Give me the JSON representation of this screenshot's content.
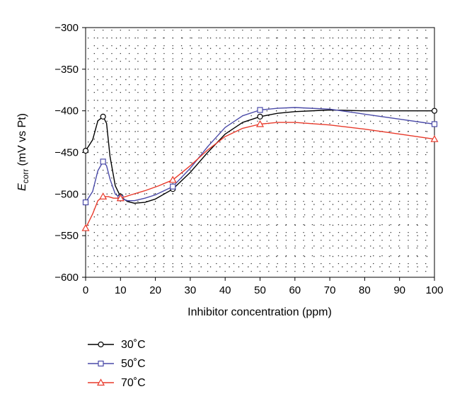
{
  "chart_data": {
    "type": "line",
    "xlabel": "Inhibitor concentration (ppm)",
    "ylabel": {
      "symbol": "E",
      "subscript": "corr",
      "units": "(mV vs Pt)"
    },
    "xlim": [
      0,
      100
    ],
    "ylim": [
      -600,
      -300
    ],
    "xticks": [
      0,
      10,
      20,
      30,
      40,
      50,
      60,
      70,
      80,
      90,
      100
    ],
    "yticks": [
      -300,
      -350,
      -400,
      -450,
      -500,
      -550,
      -600
    ],
    "grid": "dotted",
    "legend_position": "bottom-left",
    "series": [
      {
        "name": "30˚C",
        "color": "#000000",
        "marker": "circle",
        "x": [
          0,
          5,
          10,
          25,
          50,
          100
        ],
        "y": [
          -448,
          -407,
          -503,
          -494,
          -407,
          -400
        ],
        "curve": [
          [
            0,
            -448
          ],
          [
            2,
            -435
          ],
          [
            3.5,
            -412
          ],
          [
            5,
            -407
          ],
          [
            6,
            -415
          ],
          [
            7,
            -455
          ],
          [
            8.5,
            -490
          ],
          [
            10,
            -503
          ],
          [
            12,
            -509
          ],
          [
            14,
            -511
          ],
          [
            17,
            -510
          ],
          [
            20,
            -506
          ],
          [
            25,
            -494
          ],
          [
            30,
            -474
          ],
          [
            35,
            -450
          ],
          [
            40,
            -428
          ],
          [
            45,
            -414
          ],
          [
            50,
            -407
          ],
          [
            55,
            -403
          ],
          [
            60,
            -401
          ],
          [
            70,
            -399
          ],
          [
            80,
            -400
          ],
          [
            90,
            -400
          ],
          [
            100,
            -400
          ]
        ]
      },
      {
        "name": "50˚C",
        "color": "#4a4aa8",
        "marker": "square",
        "x": [
          0,
          5,
          10,
          25,
          50,
          100
        ],
        "y": [
          -510,
          -461,
          -505,
          -491,
          -399,
          -416
        ],
        "curve": [
          [
            0,
            -510
          ],
          [
            2,
            -497
          ],
          [
            3.5,
            -472
          ],
          [
            5,
            -461
          ],
          [
            6,
            -466
          ],
          [
            7,
            -482
          ],
          [
            8.5,
            -500
          ],
          [
            10,
            -505
          ],
          [
            12,
            -508
          ],
          [
            14,
            -508
          ],
          [
            17,
            -505
          ],
          [
            20,
            -501
          ],
          [
            25,
            -491
          ],
          [
            30,
            -469
          ],
          [
            35,
            -443
          ],
          [
            40,
            -420
          ],
          [
            45,
            -406
          ],
          [
            50,
            -399
          ],
          [
            55,
            -397
          ],
          [
            60,
            -396
          ],
          [
            70,
            -398
          ],
          [
            80,
            -404
          ],
          [
            90,
            -410
          ],
          [
            100,
            -416
          ]
        ]
      },
      {
        "name": "70˚C",
        "color": "#e8392a",
        "marker": "triangle",
        "x": [
          0,
          5,
          10,
          25,
          50,
          100
        ],
        "y": [
          -541,
          -503,
          -505,
          -483,
          -416,
          -434
        ],
        "curve": [
          [
            0,
            -541
          ],
          [
            2,
            -524
          ],
          [
            3.5,
            -508
          ],
          [
            5,
            -503
          ],
          [
            6.5,
            -503
          ],
          [
            8,
            -505
          ],
          [
            10,
            -505
          ],
          [
            13,
            -501
          ],
          [
            17,
            -496
          ],
          [
            21,
            -490
          ],
          [
            25,
            -483
          ],
          [
            30,
            -466
          ],
          [
            35,
            -447
          ],
          [
            40,
            -431
          ],
          [
            45,
            -421
          ],
          [
            50,
            -416
          ],
          [
            55,
            -414
          ],
          [
            60,
            -414
          ],
          [
            70,
            -417
          ],
          [
            80,
            -422
          ],
          [
            90,
            -428
          ],
          [
            100,
            -434
          ]
        ]
      }
    ]
  }
}
